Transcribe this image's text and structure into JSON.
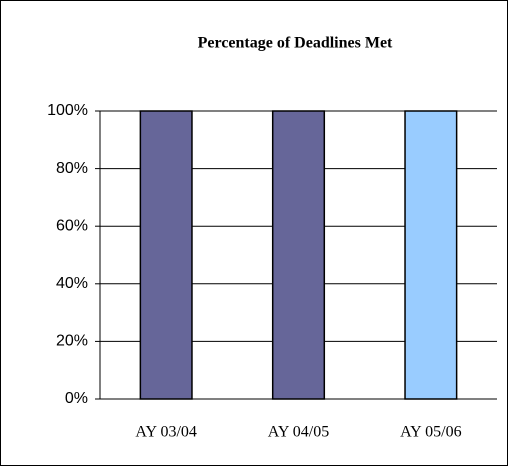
{
  "chart_data": {
    "type": "bar",
    "title": "Percentage of Deadlines Met",
    "categories": [
      "AY 03/04",
      "AY 04/05",
      "AY 05/06"
    ],
    "values": [
      100,
      100,
      100
    ],
    "colors": [
      "#666699",
      "#666699",
      "#99ccff"
    ],
    "ylim": [
      0,
      100
    ],
    "yticks": [
      {
        "value": 0,
        "label": "0%"
      },
      {
        "value": 20,
        "label": "20%"
      },
      {
        "value": 40,
        "label": "40%"
      },
      {
        "value": 60,
        "label": "60%"
      },
      {
        "value": 80,
        "label": "80%"
      },
      {
        "value": 100,
        "label": "100%"
      }
    ],
    "grid": true
  }
}
